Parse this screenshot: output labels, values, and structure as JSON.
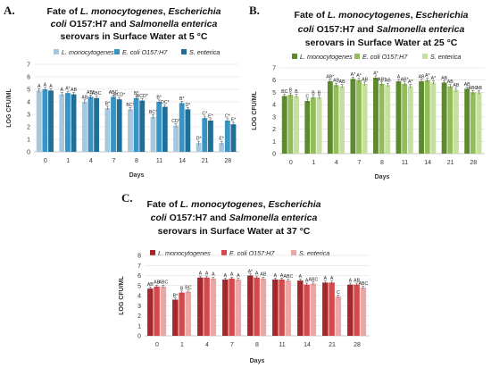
{
  "panels": [
    {
      "label": "A.",
      "title_lines": [
        [
          {
            "t": "Fate of ",
            "i": false
          },
          {
            "t": "L. monocytogenes",
            "i": true
          },
          {
            "t": ", ",
            "i": false
          },
          {
            "t": "Escherichia",
            "i": true
          }
        ],
        [
          {
            "t": "coli",
            "i": true
          },
          {
            "t": " O157:H7 and ",
            "i": false
          },
          {
            "t": "Salmonella enterica",
            "i": true
          }
        ],
        [
          {
            "t": "serovars in Surface Water at 5 °C",
            "i": false
          }
        ]
      ],
      "colors": [
        "#a5c8de",
        "#3794c4",
        "#1f6f99"
      ],
      "legend_italic": [
        true,
        true,
        true
      ]
    },
    {
      "label": "B.",
      "title_lines": [
        [
          {
            "t": "Fate of ",
            "i": false
          },
          {
            "t": "L. monocytogenes",
            "i": true
          },
          {
            "t": ", ",
            "i": false
          },
          {
            "t": "Escherichia",
            "i": true
          }
        ],
        [
          {
            "t": "coli",
            "i": true
          },
          {
            "t": " O157:H7 and ",
            "i": false
          },
          {
            "t": "Salmonella enterica",
            "i": true
          }
        ],
        [
          {
            "t": "serovars in Surface Water at 25 °C",
            "i": false
          }
        ]
      ],
      "colors": [
        "#5d8a2c",
        "#93bd5a",
        "#c5df9e"
      ],
      "legend_italic": [
        true,
        true,
        true
      ]
    },
    {
      "label": "C.",
      "title_lines": [
        [
          {
            "t": "Fate of ",
            "i": false
          },
          {
            "t": "L. monocytogenes",
            "i": true
          },
          {
            "t": ", ",
            "i": false
          },
          {
            "t": "Escherichia",
            "i": true
          }
        ],
        [
          {
            "t": "coli",
            "i": true
          },
          {
            "t": " O157:H7 and ",
            "i": false
          },
          {
            "t": "Salmonella enterica",
            "i": true
          }
        ],
        [
          {
            "t": "serovars in Surface Water at 37 °C",
            "i": false
          }
        ]
      ],
      "colors": [
        "#a3272b",
        "#d34a4c",
        "#eaa7a7"
      ],
      "legend_italic": [
        true,
        true,
        true
      ]
    }
  ],
  "chart_data": [
    {
      "type": "bar",
      "title": "Fate of L. monocytogenes, Escherichia coli O157:H7 and Salmonella enterica serovars in Surface Water at 5 °C",
      "xlabel": "Days",
      "ylabel": "LOG CFU/ML",
      "ylim": [
        0,
        7
      ],
      "yticks": [
        0,
        1,
        2,
        3,
        4,
        5,
        6,
        7
      ],
      "grid": true,
      "legend": "top",
      "categories": [
        "0",
        "1",
        "4",
        "7",
        "8",
        "11",
        "14",
        "21",
        "28"
      ],
      "series": [
        {
          "name": "L. monocytogenes",
          "values": [
            4.9,
            4.6,
            4.0,
            3.5,
            3.4,
            2.8,
            2.1,
            0.7,
            0.7
          ],
          "letters": [
            "A",
            "A",
            "AB",
            "B*",
            "BC*",
            "BC*",
            "CD*",
            "D*",
            "E*"
          ]
        },
        {
          "name": "E. coli O157:H7",
          "values": [
            5.0,
            4.7,
            4.4,
            4.4,
            4.3,
            4.0,
            3.9,
            2.7,
            2.5
          ],
          "letters": [
            "A",
            "A*",
            "AB*",
            "ABC",
            "B*",
            "B*",
            "B*",
            "C*",
            "C*"
          ]
        },
        {
          "name": "S. enterica",
          "values": [
            4.9,
            4.6,
            4.3,
            4.2,
            4.1,
            3.6,
            3.4,
            2.5,
            2.2
          ],
          "letters": [
            "A",
            "AB",
            "ABC",
            "BCD*",
            "BCD*",
            "DC*",
            "D*",
            "E*",
            "E*"
          ]
        }
      ]
    },
    {
      "type": "bar",
      "title": "Fate of L. monocytogenes, Escherichia coli O157:H7 and Salmonella enterica serovars in Surface Water at 25 °C",
      "xlabel": "Days",
      "ylabel": "LOG CFU/ML",
      "ylim": [
        0,
        7
      ],
      "yticks": [
        0,
        1,
        2,
        3,
        4,
        5,
        6,
        7
      ],
      "grid": true,
      "legend": "top",
      "categories": [
        "0",
        "1",
        "4",
        "7",
        "8",
        "11",
        "14",
        "21",
        "28"
      ],
      "series": [
        {
          "name": "L. monocytogenes",
          "values": [
            4.7,
            4.3,
            5.9,
            6.1,
            6.2,
            5.9,
            5.9,
            5.8,
            5.3
          ],
          "letters": [
            "BC",
            "C",
            "AB*",
            "A*",
            "A*",
            "A",
            "AB",
            "AB",
            "AB"
          ]
        },
        {
          "name": "E. coli O157:H7",
          "values": [
            4.8,
            4.6,
            5.6,
            6.0,
            5.7,
            5.7,
            6.0,
            5.5,
            5.0
          ],
          "letters": [
            "B",
            "B",
            "AB",
            "A*",
            "AB*",
            "AB*",
            "A*",
            "AB",
            "ABC"
          ]
        },
        {
          "name": "S. enterica",
          "values": [
            4.7,
            4.6,
            5.5,
            5.7,
            5.6,
            5.5,
            5.8,
            5.2,
            5.0
          ],
          "letters": [
            "B",
            "B",
            "AB",
            "AB",
            "AB",
            "A*",
            "A*",
            "AB",
            "AB"
          ]
        }
      ]
    },
    {
      "type": "bar",
      "title": "Fate of L. monocytogenes, Escherichia coli O157:H7 and Salmonella enterica serovars in Surface Water at 37 °C",
      "xlabel": "Days",
      "ylabel": "LOG CFU/ML",
      "ylim": [
        0,
        8
      ],
      "yticks": [
        0,
        1,
        2,
        3,
        4,
        5,
        6,
        7,
        8
      ],
      "grid": true,
      "legend": "top",
      "categories": [
        "0",
        "1",
        "4",
        "7",
        "8",
        "11",
        "14",
        "21",
        "28"
      ],
      "series": [
        {
          "name": "L. monocytogenes",
          "values": [
            4.7,
            3.6,
            5.8,
            5.6,
            6.0,
            5.6,
            5.5,
            5.3,
            5.1
          ],
          "letters": [
            "AB",
            "B*",
            "A",
            "A",
            "A*",
            "A",
            "A",
            "A",
            "A"
          ]
        },
        {
          "name": "E. coli O157:H7",
          "values": [
            4.9,
            4.3,
            5.8,
            5.7,
            5.8,
            5.6,
            5.1,
            5.3,
            5.1
          ],
          "letters": [
            "AB",
            "B",
            "A",
            "A",
            "A",
            "A",
            "A",
            "A",
            "AB"
          ]
        },
        {
          "name": "S. enterica",
          "values": [
            4.9,
            4.4,
            5.7,
            5.6,
            5.7,
            5.5,
            5.2,
            3.9,
            4.8
          ],
          "letters": [
            "ABC",
            "BC",
            "A",
            "A",
            "AB",
            "ABC",
            "ABC",
            "C",
            "ABC"
          ]
        }
      ]
    }
  ]
}
